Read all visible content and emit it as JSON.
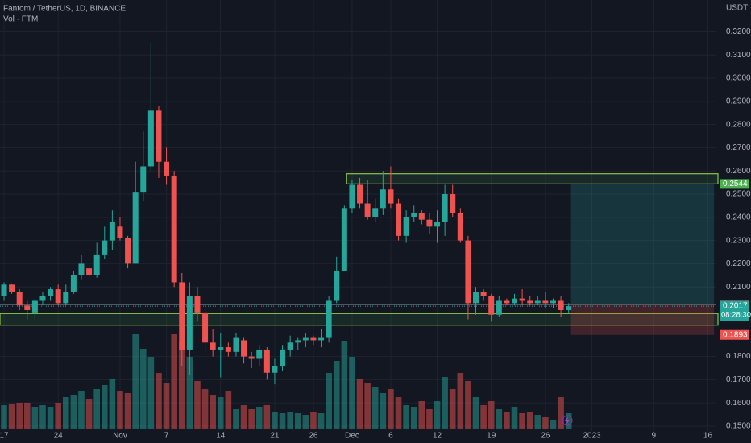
{
  "header": {
    "symbol": "Fantom / TetherUS, 1D, BINANCE",
    "volume_title": "Vol · FTM",
    "currency": "USDT"
  },
  "chart_data": {
    "type": "candlestick",
    "x": [
      0,
      1,
      2,
      3,
      4,
      5,
      6,
      7,
      8,
      9,
      10,
      11,
      12,
      13,
      14,
      15,
      16,
      17,
      18,
      19,
      20,
      21,
      22,
      23,
      24,
      25,
      26,
      27,
      28,
      29,
      30,
      31,
      32,
      33,
      34,
      35,
      36,
      37,
      38,
      39,
      40,
      41,
      42,
      43,
      44,
      45,
      46,
      47,
      48,
      49,
      50,
      51,
      52,
      53,
      54,
      55,
      56,
      57,
      58,
      59,
      60,
      61,
      62,
      63,
      64,
      65,
      66,
      67,
      68,
      69,
      70,
      71,
      72,
      73
    ],
    "open": [
      0.206,
      0.211,
      0.208,
      0.202,
      0.199,
      0.204,
      0.206,
      0.209,
      0.203,
      0.208,
      0.215,
      0.218,
      0.215,
      0.224,
      0.23,
      0.236,
      0.231,
      0.22,
      0.251,
      0.262,
      0.286,
      0.264,
      0.258,
      0.212,
      0.183,
      0.206,
      0.199,
      0.186,
      0.183,
      0.184,
      0.182,
      0.187,
      0.18,
      0.179,
      0.183,
      0.173,
      0.176,
      0.183,
      0.186,
      0.187,
      0.188,
      0.187,
      0.188,
      0.204,
      0.217,
      0.244,
      0.254,
      0.246,
      0.24,
      0.244,
      0.252,
      0.246,
      0.232,
      0.24,
      0.242,
      0.239,
      0.236,
      0.238,
      0.25,
      0.242,
      0.23,
      0.203,
      0.208,
      0.206,
      0.198,
      0.204,
      0.203,
      0.205,
      0.204,
      0.203,
      0.204,
      0.203,
      0.204,
      0.2
    ],
    "high": [
      0.212,
      0.2115,
      0.209,
      0.204,
      0.205,
      0.208,
      0.21,
      0.211,
      0.211,
      0.217,
      0.224,
      0.219,
      0.229,
      0.236,
      0.243,
      0.24,
      0.232,
      0.264,
      0.277,
      0.315,
      0.288,
      0.27,
      0.26,
      0.216,
      0.212,
      0.21,
      0.201,
      0.192,
      0.19,
      0.186,
      0.19,
      0.188,
      0.182,
      0.185,
      0.184,
      0.179,
      0.185,
      0.189,
      0.188,
      0.19,
      0.189,
      0.192,
      0.206,
      0.223,
      0.245,
      0.256,
      0.257,
      0.256,
      0.248,
      0.26,
      0.262,
      0.248,
      0.243,
      0.245,
      0.243,
      0.242,
      0.243,
      0.254,
      0.254,
      0.244,
      0.232,
      0.21,
      0.209,
      0.207,
      0.206,
      0.205,
      0.207,
      0.209,
      0.206,
      0.206,
      0.208,
      0.205,
      0.206,
      0.203
    ],
    "low": [
      0.204,
      0.207,
      0.2,
      0.196,
      0.196,
      0.202,
      0.204,
      0.202,
      0.202,
      0.207,
      0.213,
      0.214,
      0.214,
      0.222,
      0.226,
      0.23,
      0.218,
      0.22,
      0.247,
      0.26,
      0.257,
      0.254,
      0.21,
      0.176,
      0.172,
      0.195,
      0.182,
      0.18,
      0.171,
      0.18,
      0.18,
      0.177,
      0.175,
      0.176,
      0.17,
      0.168,
      0.174,
      0.18,
      0.183,
      0.184,
      0.185,
      0.184,
      0.186,
      0.203,
      0.217,
      0.242,
      0.244,
      0.239,
      0.238,
      0.241,
      0.244,
      0.23,
      0.229,
      0.238,
      0.237,
      0.233,
      0.229,
      0.232,
      0.24,
      0.229,
      0.196,
      0.198,
      0.204,
      0.195,
      0.197,
      0.202,
      0.202,
      0.202,
      0.202,
      0.202,
      0.201,
      0.201,
      0.197,
      0.199
    ],
    "close": [
      0.211,
      0.208,
      0.202,
      0.2,
      0.204,
      0.206,
      0.209,
      0.203,
      0.208,
      0.215,
      0.22,
      0.215,
      0.224,
      0.23,
      0.238,
      0.231,
      0.22,
      0.251,
      0.262,
      0.286,
      0.264,
      0.258,
      0.212,
      0.183,
      0.206,
      0.199,
      0.186,
      0.183,
      0.184,
      0.182,
      0.188,
      0.18,
      0.179,
      0.183,
      0.173,
      0.176,
      0.183,
      0.186,
      0.187,
      0.188,
      0.187,
      0.188,
      0.204,
      0.217,
      0.244,
      0.254,
      0.246,
      0.24,
      0.244,
      0.252,
      0.246,
      0.232,
      0.24,
      0.242,
      0.239,
      0.236,
      0.238,
      0.25,
      0.242,
      0.23,
      0.203,
      0.208,
      0.206,
      0.198,
      0.204,
      0.203,
      0.205,
      0.204,
      0.203,
      0.204,
      0.203,
      0.204,
      0.2,
      0.2017
    ],
    "volume": [
      30,
      32,
      33,
      33,
      28,
      30,
      28,
      33,
      40,
      43,
      47,
      38,
      50,
      55,
      63,
      48,
      45,
      118,
      100,
      90,
      70,
      58,
      118,
      108,
      90,
      60,
      50,
      42,
      40,
      48,
      25,
      30,
      25,
      28,
      30,
      22,
      20,
      22,
      20,
      18,
      22,
      20,
      70,
      85,
      110,
      90,
      62,
      58,
      52,
      45,
      50,
      40,
      30,
      28,
      35,
      25,
      35,
      65,
      50,
      70,
      60,
      40,
      30,
      35,
      25,
      22,
      28,
      20,
      22,
      18,
      15,
      12,
      40,
      20
    ],
    "volume_lim": [
      0,
      130
    ],
    "up_color": "#26a69a",
    "down_color": "#ef5350",
    "xlim": [
      -0.52,
      92.2
    ],
    "ylim": [
      0.1427,
      0.3337
    ],
    "xticks": [
      {
        "value": 0,
        "label": "17"
      },
      {
        "value": 7,
        "label": "24"
      },
      {
        "value": 15,
        "label": "Nov"
      },
      {
        "value": 21,
        "label": "7"
      },
      {
        "value": 28,
        "label": "14"
      },
      {
        "value": 35,
        "label": "21"
      },
      {
        "value": 40,
        "label": "26"
      },
      {
        "value": 45,
        "label": "Dec"
      },
      {
        "value": 50,
        "label": "6"
      },
      {
        "value": 56,
        "label": "12"
      },
      {
        "value": 63,
        "label": "19"
      },
      {
        "value": 70,
        "label": "26"
      },
      {
        "value": 76,
        "label": "2023"
      },
      {
        "value": 84,
        "label": "9"
      },
      {
        "value": 91,
        "label": "16"
      }
    ],
    "yticks": [
      {
        "value": 0.32,
        "label": "0.3200"
      },
      {
        "value": 0.31,
        "label": "0.3100"
      },
      {
        "value": 0.3,
        "label": "0.3000"
      },
      {
        "value": 0.29,
        "label": "0.2900"
      },
      {
        "value": 0.28,
        "label": "0.2800"
      },
      {
        "value": 0.27,
        "label": "0.2700"
      },
      {
        "value": 0.26,
        "label": "0.2600"
      },
      {
        "value": 0.25,
        "label": "0.2500"
      },
      {
        "value": 0.24,
        "label": "0.2400"
      },
      {
        "value": 0.23,
        "label": "0.2300"
      },
      {
        "value": 0.22,
        "label": "0.2200"
      },
      {
        "value": 0.21,
        "label": "0.2100"
      },
      {
        "value": 0.18,
        "label": "0.1800"
      },
      {
        "value": 0.17,
        "label": "0.1700"
      },
      {
        "value": 0.16,
        "label": "0.1600"
      },
      {
        "value": 0.15,
        "label": "0.1500"
      }
    ],
    "grid": true,
    "zones": [
      {
        "start": 44.3,
        "low": 0.2544,
        "high": 0.2588
      },
      {
        "low": 0.1935,
        "high": 0.1985
      }
    ],
    "position": {
      "start": 73.2,
      "end": 91.8,
      "entry": 0.2023,
      "target": 0.2544,
      "stop": 0.1893
    },
    "last_price": 0.2017,
    "countdown": "08:28:30"
  }
}
